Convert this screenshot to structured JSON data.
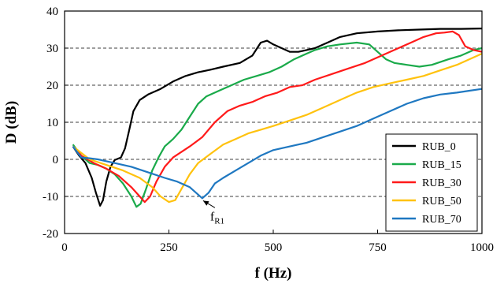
{
  "chart_data": {
    "type": "line",
    "xlabel": "f (Hz)",
    "ylabel": "D (dB)",
    "xlim": [
      0,
      1000
    ],
    "ylim": [
      -20,
      40
    ],
    "xticks": [
      0,
      250,
      500,
      750,
      1000
    ],
    "yticks": [
      -20,
      -10,
      0,
      10,
      20,
      30,
      40
    ],
    "grid": "horizontal dashed",
    "legend_position": "bottom-right",
    "annotation": {
      "text": "f",
      "subscript": "R1",
      "x": 330,
      "y": -10.5
    },
    "series": [
      {
        "name": "RUB_0",
        "color": "#000000",
        "points": [
          [
            20,
            3.5
          ],
          [
            35,
            1
          ],
          [
            50,
            -1
          ],
          [
            65,
            -5
          ],
          [
            75,
            -9
          ],
          [
            85,
            -12.5
          ],
          [
            92,
            -11
          ],
          [
            100,
            -6
          ],
          [
            110,
            -2
          ],
          [
            120,
            -0.2
          ],
          [
            135,
            0.5
          ],
          [
            145,
            3
          ],
          [
            155,
            8
          ],
          [
            165,
            13
          ],
          [
            180,
            16
          ],
          [
            200,
            17.5
          ],
          [
            230,
            19
          ],
          [
            260,
            21
          ],
          [
            290,
            22.5
          ],
          [
            320,
            23.5
          ],
          [
            350,
            24.2
          ],
          [
            380,
            25
          ],
          [
            420,
            26
          ],
          [
            450,
            28
          ],
          [
            470,
            31.5
          ],
          [
            485,
            32
          ],
          [
            500,
            31
          ],
          [
            520,
            30
          ],
          [
            540,
            29
          ],
          [
            560,
            29
          ],
          [
            580,
            29.5
          ],
          [
            600,
            30
          ],
          [
            630,
            31.5
          ],
          [
            660,
            33
          ],
          [
            700,
            34
          ],
          [
            750,
            34.5
          ],
          [
            800,
            34.8
          ],
          [
            850,
            35
          ],
          [
            900,
            35.2
          ],
          [
            950,
            35.2
          ],
          [
            1000,
            35.3
          ]
        ]
      },
      {
        "name": "RUB_15",
        "color": "#1aaa4a",
        "points": [
          [
            20,
            4
          ],
          [
            40,
            1
          ],
          [
            60,
            -1
          ],
          [
            80,
            -1.5
          ],
          [
            100,
            -2.5
          ],
          [
            120,
            -4
          ],
          [
            140,
            -6.5
          ],
          [
            160,
            -10
          ],
          [
            172,
            -12.8
          ],
          [
            182,
            -12
          ],
          [
            195,
            -8
          ],
          [
            210,
            -3
          ],
          [
            225,
            0.5
          ],
          [
            240,
            3.5
          ],
          [
            260,
            5.5
          ],
          [
            280,
            8
          ],
          [
            300,
            11.5
          ],
          [
            320,
            15
          ],
          [
            340,
            17
          ],
          [
            370,
            18.5
          ],
          [
            400,
            20
          ],
          [
            430,
            21.5
          ],
          [
            460,
            22.5
          ],
          [
            490,
            23.5
          ],
          [
            520,
            25
          ],
          [
            550,
            27
          ],
          [
            580,
            28.5
          ],
          [
            600,
            29.5
          ],
          [
            630,
            30.5
          ],
          [
            660,
            31
          ],
          [
            700,
            31.5
          ],
          [
            730,
            31
          ],
          [
            750,
            29
          ],
          [
            770,
            27
          ],
          [
            790,
            26
          ],
          [
            820,
            25.5
          ],
          [
            850,
            25
          ],
          [
            880,
            25.5
          ],
          [
            920,
            27
          ],
          [
            950,
            28
          ],
          [
            980,
            29.5
          ],
          [
            1000,
            30
          ]
        ]
      },
      {
        "name": "RUB_30",
        "color": "#ff1a1a",
        "points": [
          [
            20,
            3.5
          ],
          [
            40,
            1
          ],
          [
            70,
            -1
          ],
          [
            100,
            -2.5
          ],
          [
            130,
            -4.5
          ],
          [
            160,
            -7.5
          ],
          [
            180,
            -10
          ],
          [
            192,
            -11.5
          ],
          [
            205,
            -10
          ],
          [
            220,
            -6
          ],
          [
            240,
            -2
          ],
          [
            260,
            0.5
          ],
          [
            280,
            2
          ],
          [
            300,
            3.5
          ],
          [
            330,
            6
          ],
          [
            360,
            10
          ],
          [
            390,
            13
          ],
          [
            420,
            14.5
          ],
          [
            450,
            15.5
          ],
          [
            480,
            17
          ],
          [
            510,
            18
          ],
          [
            540,
            19.5
          ],
          [
            570,
            20
          ],
          [
            600,
            21.5
          ],
          [
            640,
            23
          ],
          [
            680,
            24.5
          ],
          [
            720,
            26
          ],
          [
            760,
            28
          ],
          [
            800,
            30
          ],
          [
            830,
            31.5
          ],
          [
            860,
            33
          ],
          [
            890,
            34
          ],
          [
            910,
            34.2
          ],
          [
            930,
            34.5
          ],
          [
            945,
            33.5
          ],
          [
            960,
            30.5
          ],
          [
            980,
            29.5
          ],
          [
            1000,
            29
          ]
        ]
      },
      {
        "name": "RUB_50",
        "color": "#ffc20e",
        "points": [
          [
            20,
            3.5
          ],
          [
            60,
            0
          ],
          [
            100,
            -1.5
          ],
          [
            140,
            -3
          ],
          [
            180,
            -5
          ],
          [
            210,
            -7.5
          ],
          [
            230,
            -10
          ],
          [
            250,
            -11.5
          ],
          [
            265,
            -11
          ],
          [
            280,
            -8
          ],
          [
            300,
            -4
          ],
          [
            320,
            -1
          ],
          [
            350,
            1.5
          ],
          [
            380,
            4
          ],
          [
            410,
            5.5
          ],
          [
            440,
            7
          ],
          [
            470,
            8
          ],
          [
            500,
            9
          ],
          [
            540,
            10.5
          ],
          [
            580,
            12
          ],
          [
            620,
            14
          ],
          [
            660,
            16
          ],
          [
            700,
            18
          ],
          [
            740,
            19.5
          ],
          [
            780,
            20.5
          ],
          [
            820,
            21.5
          ],
          [
            860,
            22.5
          ],
          [
            900,
            24
          ],
          [
            940,
            25.5
          ],
          [
            970,
            27
          ],
          [
            1000,
            28.5
          ]
        ]
      },
      {
        "name": "RUB_70",
        "color": "#1f78c1",
        "points": [
          [
            20,
            3.5
          ],
          [
            40,
            0.5
          ],
          [
            60,
            0.3
          ],
          [
            80,
            0
          ],
          [
            120,
            -1
          ],
          [
            160,
            -2
          ],
          [
            200,
            -3.5
          ],
          [
            240,
            -5
          ],
          [
            270,
            -6
          ],
          [
            300,
            -7.5
          ],
          [
            320,
            -9.5
          ],
          [
            330,
            -10.5
          ],
          [
            345,
            -9
          ],
          [
            360,
            -6.5
          ],
          [
            380,
            -5
          ],
          [
            410,
            -3
          ],
          [
            440,
            -1
          ],
          [
            470,
            1
          ],
          [
            500,
            2.5
          ],
          [
            540,
            3.5
          ],
          [
            580,
            4.5
          ],
          [
            620,
            6
          ],
          [
            660,
            7.5
          ],
          [
            700,
            9
          ],
          [
            740,
            11
          ],
          [
            780,
            13
          ],
          [
            820,
            15
          ],
          [
            860,
            16.5
          ],
          [
            900,
            17.5
          ],
          [
            940,
            18
          ],
          [
            970,
            18.5
          ],
          [
            1000,
            19
          ]
        ]
      }
    ]
  }
}
